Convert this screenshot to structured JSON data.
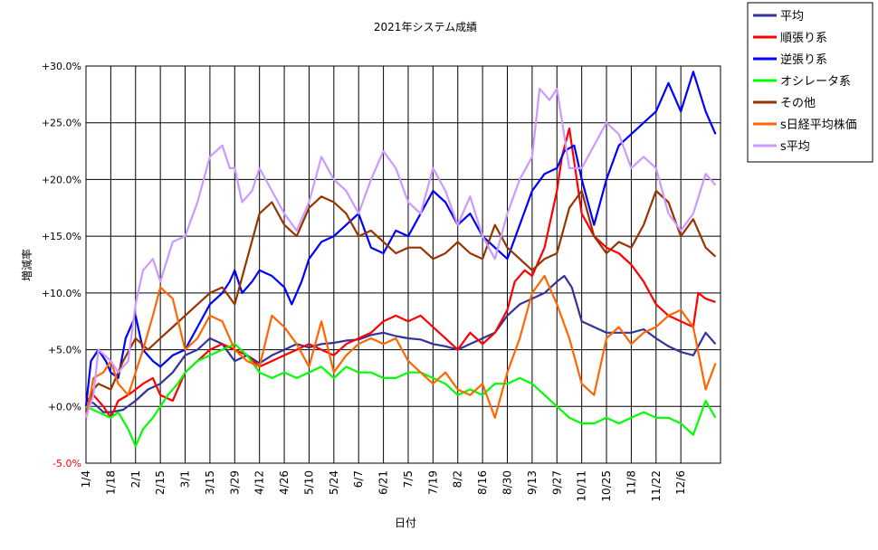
{
  "chart_data": {
    "type": "line",
    "title": "2021年システム成績",
    "xlabel": "日付",
    "ylabel": "増減率",
    "ylim": [
      -5,
      30
    ],
    "yticks": [
      {
        "value": -5,
        "label": "-5.0%",
        "color": "#ff0000"
      },
      {
        "value": 0,
        "label": "+0.0%",
        "color": "#000000"
      },
      {
        "value": 5,
        "label": "+5.0%",
        "color": "#000000"
      },
      {
        "value": 10,
        "label": "+10.0%",
        "color": "#000000"
      },
      {
        "value": 15,
        "label": "+15.0%",
        "color": "#000000"
      },
      {
        "value": 20,
        "label": "+20.0%",
        "color": "#000000"
      },
      {
        "value": 25,
        "label": "+25.0%",
        "color": "#000000"
      },
      {
        "value": 30,
        "label": "+30.0%",
        "color": "#000000"
      }
    ],
    "categories": [
      "1/4",
      "1/18",
      "2/1",
      "2/15",
      "3/1",
      "3/15",
      "3/29",
      "4/12",
      "4/26",
      "5/10",
      "5/24",
      "6/7",
      "6/21",
      "7/5",
      "7/19",
      "8/2",
      "8/16",
      "8/30",
      "9/13",
      "9/27",
      "10/11",
      "10/25",
      "11/8",
      "11/22",
      "12/6"
    ],
    "x_extent": 25.6,
    "grid": true,
    "legend_position": "top-right outside",
    "series": [
      {
        "name": "平均",
        "color": "#333399",
        "x": [
          0,
          0.3,
          0.7,
          1,
          1.5,
          2,
          2.5,
          3,
          3.5,
          4,
          4.5,
          5,
          5.5,
          6,
          6.5,
          7,
          7.5,
          8,
          8.5,
          9,
          9.5,
          10,
          10.5,
          11,
          11.5,
          12,
          12.5,
          13,
          13.5,
          14,
          14.5,
          15,
          15.5,
          16,
          16.5,
          17,
          17.5,
          18,
          18.5,
          19,
          19.3,
          19.6,
          20,
          20.5,
          21,
          21.5,
          22,
          22.5,
          23,
          23.5,
          24,
          24.5,
          25,
          25.4
        ],
        "values": [
          0.5,
          0.3,
          -0.5,
          -0.5,
          -0.3,
          0.5,
          1.5,
          2,
          3,
          4.5,
          5,
          6,
          5.5,
          4,
          4.5,
          3.8,
          4.5,
          5,
          5.5,
          5.2,
          5.5,
          5.6,
          5.8,
          5.9,
          6.3,
          6.5,
          6.2,
          6,
          5.9,
          5.5,
          5.3,
          5,
          5.5,
          6,
          6.5,
          8,
          9,
          9.5,
          10,
          11,
          11.5,
          10.5,
          7.5,
          7,
          6.5,
          6.5,
          6.5,
          6.8,
          6,
          5.3,
          4.8,
          4.5,
          6.5,
          5.5
        ]
      },
      {
        "name": "順張り系",
        "color": "#ff0000",
        "x": [
          0,
          0.3,
          0.7,
          1,
          1.3,
          1.7,
          2,
          2.3,
          2.7,
          3,
          3.5,
          4,
          4.5,
          5,
          5.5,
          6,
          6.5,
          7,
          7.5,
          8,
          8.5,
          9,
          9.5,
          10,
          10.5,
          11,
          11.5,
          12,
          12.5,
          13,
          13.5,
          14,
          14.5,
          15,
          15.5,
          16,
          16.5,
          17,
          17.3,
          17.7,
          18,
          18.5,
          19,
          19.2,
          19.5,
          20,
          20.5,
          21,
          21.5,
          22,
          22.5,
          23,
          23.5,
          24,
          24.5,
          24.7,
          25,
          25.4
        ],
        "values": [
          0.5,
          1,
          0,
          -1,
          0.5,
          1,
          1.5,
          2,
          2.5,
          1,
          0.5,
          3,
          4,
          5,
          5.5,
          5,
          4.5,
          3.5,
          4,
          4.5,
          5,
          5.5,
          5,
          4.5,
          5.5,
          6,
          6.5,
          7.5,
          8,
          7.5,
          8,
          7,
          6,
          5,
          6.5,
          5.5,
          6.5,
          8.5,
          11,
          12,
          11.5,
          14,
          19,
          22,
          24.5,
          17,
          15,
          14,
          13.5,
          12.5,
          11,
          9,
          8,
          7.5,
          7,
          10,
          9.5,
          9.2
        ]
      },
      {
        "name": "逆張り系",
        "color": "#0000ff",
        "x": [
          0,
          0.2,
          0.5,
          0.8,
          1,
          1.3,
          1.6,
          2,
          2.3,
          2.7,
          3,
          3.5,
          4,
          4.5,
          5,
          5.5,
          5.8,
          6,
          6.3,
          6.7,
          7,
          7.5,
          8,
          8.3,
          8.7,
          9,
          9.5,
          10,
          10.5,
          11,
          11.5,
          12,
          12.5,
          13,
          13.5,
          14,
          14.5,
          15,
          15.5,
          16,
          16.5,
          17,
          17.5,
          18,
          18.5,
          19,
          19.3,
          19.7,
          20,
          20.5,
          21,
          21.5,
          22,
          22.5,
          23,
          23.5,
          24,
          24.5,
          25,
          25.4
        ],
        "values": [
          0,
          4,
          5,
          4,
          3,
          2.5,
          6,
          8,
          5,
          4,
          3.5,
          4.5,
          5,
          7,
          9,
          10,
          11,
          12,
          10,
          11,
          12,
          11.5,
          10.5,
          9,
          11,
          13,
          14.5,
          15,
          16,
          17,
          14,
          13.5,
          15.5,
          15,
          17,
          19,
          18,
          16,
          17,
          15,
          14,
          13,
          16,
          19,
          20.5,
          21,
          22.5,
          23,
          20,
          16,
          20,
          23,
          24,
          25,
          26,
          28.5,
          26,
          29.5,
          26,
          24
        ]
      },
      {
        "name": "オシレータ系",
        "color": "#00ff00",
        "x": [
          0,
          0.5,
          1,
          1.3,
          1.7,
          2,
          2.3,
          2.7,
          3,
          3.3,
          3.7,
          4,
          4.5,
          5,
          5.5,
          6,
          6.5,
          7,
          7.5,
          8,
          8.5,
          9,
          9.5,
          10,
          10.5,
          11,
          11.5,
          12,
          12.5,
          13,
          13.5,
          14,
          14.5,
          15,
          15.5,
          16,
          16.5,
          17,
          17.5,
          18,
          18.5,
          19,
          19.5,
          20,
          20.5,
          21,
          21.5,
          22,
          22.5,
          23,
          23.5,
          24,
          24.5,
          25,
          25.4
        ],
        "values": [
          0,
          -0.5,
          -1,
          -0.5,
          -2,
          -3.5,
          -2,
          -1,
          0,
          1,
          2,
          3,
          4,
          4.5,
          5,
          5.5,
          4.5,
          3,
          2.5,
          3,
          2.5,
          3,
          3.5,
          2.5,
          3.5,
          3,
          3,
          2.5,
          2.5,
          3,
          3,
          2.5,
          2,
          1,
          1.5,
          1,
          2,
          2,
          2.5,
          2,
          1,
          0,
          -1,
          -1.5,
          -1.5,
          -1,
          -1.5,
          -1,
          -0.5,
          -1,
          -1,
          -1.5,
          -2.5,
          0.5,
          -1
        ]
      },
      {
        "name": "その他",
        "color": "#993300",
        "x": [
          0,
          0.3,
          0.5,
          1,
          1.5,
          2,
          2.5,
          3,
          3.5,
          4,
          4.5,
          5,
          5.5,
          6,
          6.5,
          7,
          7.5,
          8,
          8.5,
          9,
          9.5,
          10,
          10.5,
          11,
          11.5,
          12,
          12.5,
          13,
          13.5,
          14,
          14.5,
          15,
          15.5,
          16,
          16.5,
          17,
          17.5,
          18,
          18.5,
          19,
          19.5,
          20,
          20.5,
          21,
          21.5,
          22,
          22.5,
          23,
          23.5,
          24,
          24.5,
          25,
          25.4
        ],
        "values": [
          -1,
          1.5,
          2,
          1.5,
          4,
          6,
          5,
          6,
          7,
          8,
          9,
          10,
          10.5,
          9,
          13,
          17,
          18,
          16,
          15,
          17.5,
          18.5,
          18,
          17,
          15,
          15.5,
          14.5,
          13.5,
          14,
          14,
          13,
          13.5,
          14.5,
          13.5,
          13,
          16,
          14,
          13,
          12,
          13,
          13.5,
          17.5,
          19,
          15,
          13.5,
          14.5,
          14,
          16,
          19,
          18,
          15,
          16.5,
          14,
          13.2
        ]
      },
      {
        "name": "s日経平均株価",
        "color": "#ff6600",
        "x": [
          0,
          0.3,
          0.7,
          1,
          1.3,
          1.7,
          2,
          2.3,
          2.7,
          3,
          3.5,
          4,
          4.5,
          5,
          5.5,
          6,
          6.5,
          7,
          7.5,
          8,
          8.5,
          9,
          9.5,
          10,
          10.5,
          11,
          11.5,
          12,
          12.5,
          13,
          13.5,
          14,
          14.5,
          15,
          15.5,
          16,
          16.5,
          17,
          17.5,
          18,
          18.5,
          19,
          19.5,
          20,
          20.5,
          21,
          21.5,
          22,
          22.5,
          23,
          23.5,
          24,
          24.5,
          25,
          25.4
        ],
        "values": [
          -1,
          2.5,
          3,
          4,
          2,
          1,
          3,
          5,
          8,
          10.5,
          9.5,
          5,
          6,
          8,
          7.5,
          5,
          4,
          3.5,
          8,
          7,
          5.5,
          3.5,
          7.5,
          3,
          4.5,
          5.5,
          6,
          5.5,
          6,
          4,
          3,
          2,
          3,
          1.5,
          1,
          2,
          -1,
          3,
          6,
          10,
          11.5,
          9,
          6,
          2,
          1,
          6,
          7,
          5.5,
          6.5,
          7,
          8,
          8.5,
          7,
          1.5,
          3.8
        ]
      },
      {
        "name": "s平均",
        "color": "#cc99ff",
        "x": [
          0,
          0.3,
          0.5,
          1,
          1.3,
          1.7,
          2,
          2.3,
          2.7,
          3,
          3.5,
          4,
          4.5,
          5,
          5.5,
          5.8,
          6,
          6.3,
          6.7,
          7,
          7.5,
          8,
          8.5,
          9,
          9.5,
          10,
          10.5,
          11,
          11.5,
          12,
          12.5,
          13,
          13.5,
          14,
          14.5,
          15,
          15.5,
          16,
          16.5,
          17,
          17.5,
          18,
          18.3,
          18.7,
          19,
          19.5,
          20,
          20.5,
          21,
          21.5,
          22,
          22.5,
          23,
          23.5,
          24,
          24.5,
          25,
          25.4
        ],
        "values": [
          -1,
          1,
          5,
          4,
          3,
          4,
          9,
          12,
          13,
          11,
          14.5,
          15,
          18,
          22,
          23,
          21,
          21,
          18,
          19,
          21,
          19,
          17,
          15.5,
          18,
          22,
          20,
          19,
          17,
          20,
          22.5,
          21,
          18,
          17,
          21,
          19,
          16,
          18.5,
          15,
          13,
          17,
          20,
          22,
          28,
          27,
          28,
          21,
          21,
          23,
          25,
          24,
          21,
          22,
          21,
          17,
          15.5,
          17,
          20.5,
          19.5
        ]
      }
    ]
  }
}
